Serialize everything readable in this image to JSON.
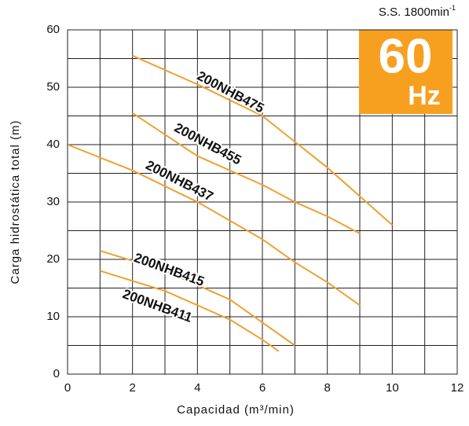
{
  "chart_data": {
    "type": "line",
    "speed_label": "S.S. 1800min",
    "speed_sup": "-1",
    "badge_value": "60",
    "badge_unit": "Hz",
    "badge_color": "#f7a020",
    "xlabel": "Capacidad (m³/min)",
    "ylabel": "Carga hidrostática total (m)",
    "xlim": [
      0,
      12
    ],
    "xticks": [
      0,
      2,
      4,
      6,
      8,
      10,
      12
    ],
    "xminor": [
      1,
      3,
      5,
      7,
      9,
      11
    ],
    "ylim": [
      0,
      60
    ],
    "yticks": [
      0,
      10,
      20,
      30,
      40,
      50,
      60
    ],
    "yminor": [
      5,
      15,
      25,
      35,
      45,
      55
    ],
    "grid": true,
    "series": [
      {
        "name": "200NHB475",
        "color": "#f0a030",
        "x": [
          2,
          4,
          6,
          7,
          8,
          9,
          10
        ],
        "values": [
          55.5,
          50.5,
          45,
          40.5,
          36,
          31,
          26
        ]
      },
      {
        "name": "200NHB455",
        "color": "#f0a030",
        "x": [
          2,
          4,
          6,
          7,
          8,
          9
        ],
        "values": [
          45.5,
          38,
          33,
          30,
          27.5,
          24.5
        ]
      },
      {
        "name": "200NHB437",
        "color": "#f0a030",
        "x": [
          0,
          2,
          4,
          6,
          7,
          8,
          9
        ],
        "values": [
          40,
          35.5,
          30,
          23.5,
          19.5,
          16,
          12
        ]
      },
      {
        "name": "200NHB415",
        "color": "#f0a030",
        "x": [
          1,
          3,
          5,
          6,
          7
        ],
        "values": [
          21.5,
          18,
          13,
          9,
          5
        ]
      },
      {
        "name": "200NHB411",
        "color": "#f0a030",
        "x": [
          1,
          3,
          5,
          6,
          6.5
        ],
        "values": [
          18,
          14.5,
          9.5,
          6,
          4
        ]
      }
    ]
  }
}
